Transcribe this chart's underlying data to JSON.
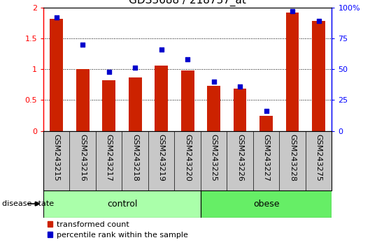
{
  "title": "GDS3688 / 218737_at",
  "samples": [
    "GSM243215",
    "GSM243216",
    "GSM243217",
    "GSM243218",
    "GSM243219",
    "GSM243220",
    "GSM243225",
    "GSM243226",
    "GSM243227",
    "GSM243228",
    "GSM243275"
  ],
  "transformed_count": [
    1.82,
    1.0,
    0.82,
    0.87,
    1.06,
    0.98,
    0.73,
    0.68,
    0.24,
    1.92,
    1.78
  ],
  "percentile_rank": [
    92,
    70,
    48,
    51,
    66,
    58,
    40,
    36,
    16,
    97,
    89
  ],
  "groups": [
    {
      "label": "control",
      "start": 0,
      "end": 6,
      "color": "#AAFFAA",
      "edgecolor": "#44BB44"
    },
    {
      "label": "obese",
      "start": 6,
      "end": 11,
      "color": "#66EE66",
      "edgecolor": "#22AA22"
    }
  ],
  "ylim_left": [
    0,
    2.0
  ],
  "ylim_right": [
    0,
    100
  ],
  "yticks_left": [
    0,
    0.5,
    1.0,
    1.5,
    2.0
  ],
  "ytick_labels_left": [
    "0",
    "0.5",
    "1",
    "1.5",
    "2"
  ],
  "yticks_right": [
    0,
    25,
    50,
    75,
    100
  ],
  "ytick_labels_right": [
    "0",
    "25",
    "50",
    "75",
    "100%"
  ],
  "bar_color": "#CC2200",
  "dot_color": "#0000CC",
  "bar_width": 0.5,
  "background_color": "#ffffff",
  "tick_area_color": "#C8C8C8",
  "legend_labels": [
    "transformed count",
    "percentile rank within the sample"
  ],
  "disease_state_label": "disease state",
  "title_fontsize": 11,
  "label_fontsize": 8,
  "tick_fontsize": 8,
  "legend_fontsize": 8
}
